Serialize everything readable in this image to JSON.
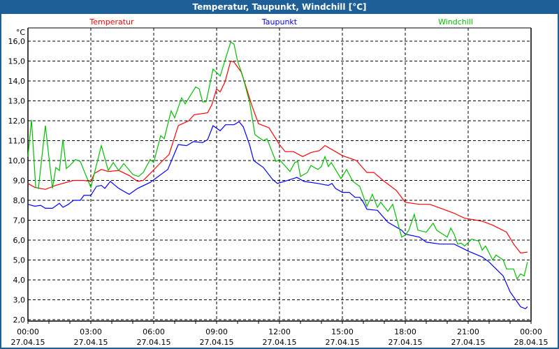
{
  "window": {
    "title": "Temperatur, Taupunkt, Windchill [°C]"
  },
  "chart_data": {
    "type": "line",
    "title": "Temperatur, Taupunkt, Windchill [°C]",
    "ylabel": "°C",
    "xlabel": "",
    "ylim": [
      2,
      16
    ],
    "xlim_hours": [
      0,
      24
    ],
    "grid": true,
    "legend_placement": "top",
    "y_ticks": [
      "2,0",
      "3,0",
      "4,0",
      "5,0",
      "6,0",
      "7,0",
      "8,0",
      "9,0",
      "10,0",
      "11,0",
      "12,0",
      "13,0",
      "14,0",
      "15,0",
      "16,0"
    ],
    "x_ticks": [
      {
        "time": "00:00",
        "date": "27.04.15"
      },
      {
        "time": "03:00",
        "date": "27.04.15"
      },
      {
        "time": "06:00",
        "date": "27.04.15"
      },
      {
        "time": "09:00",
        "date": "27.04.15"
      },
      {
        "time": "12:00",
        "date": "27.04.15"
      },
      {
        "time": "15:00",
        "date": "27.04.15"
      },
      {
        "time": "18:00",
        "date": "27.04.15"
      },
      {
        "time": "21:00",
        "date": "27.04.15"
      },
      {
        "time": "00:00",
        "date": "28.04.15"
      }
    ],
    "series": [
      {
        "name": "Temperatur",
        "color": "#ff0000",
        "points": [
          [
            0,
            8.85
          ],
          [
            0.33,
            8.65
          ],
          [
            0.83,
            8.55
          ],
          [
            1.33,
            8.75
          ],
          [
            2.17,
            9.0
          ],
          [
            2.67,
            9.0
          ],
          [
            3.0,
            8.95
          ],
          [
            3.17,
            9.35
          ],
          [
            3.5,
            9.55
          ],
          [
            3.83,
            9.45
          ],
          [
            4.33,
            9.5
          ],
          [
            4.83,
            9.25
          ],
          [
            5.23,
            8.95
          ],
          [
            5.5,
            9.0
          ],
          [
            5.83,
            9.35
          ],
          [
            6.43,
            10.0
          ],
          [
            6.73,
            10.3
          ],
          [
            7.17,
            11.75
          ],
          [
            7.67,
            12.0
          ],
          [
            7.93,
            12.3
          ],
          [
            8.57,
            12.4
          ],
          [
            8.77,
            12.8
          ],
          [
            9.0,
            13.6
          ],
          [
            9.17,
            13.45
          ],
          [
            9.4,
            13.95
          ],
          [
            9.67,
            15.0
          ],
          [
            9.83,
            14.95
          ],
          [
            10.17,
            14.45
          ],
          [
            10.33,
            13.95
          ],
          [
            10.67,
            12.8
          ],
          [
            11.0,
            11.85
          ],
          [
            11.5,
            11.65
          ],
          [
            12.0,
            10.8
          ],
          [
            12.27,
            10.45
          ],
          [
            12.67,
            10.45
          ],
          [
            13.1,
            10.2
          ],
          [
            13.5,
            10.4
          ],
          [
            13.9,
            10.5
          ],
          [
            14.17,
            10.75
          ],
          [
            15.0,
            10.25
          ],
          [
            15.67,
            10.0
          ],
          [
            16.17,
            9.4
          ],
          [
            16.5,
            9.4
          ],
          [
            17.0,
            8.95
          ],
          [
            17.57,
            8.5
          ],
          [
            18.0,
            7.9
          ],
          [
            18.67,
            7.8
          ],
          [
            19.17,
            7.8
          ],
          [
            20.33,
            7.35
          ],
          [
            20.83,
            7.1
          ],
          [
            21.67,
            6.95
          ],
          [
            22.17,
            6.75
          ],
          [
            22.83,
            6.4
          ],
          [
            23.17,
            5.8
          ],
          [
            23.5,
            5.35
          ],
          [
            23.83,
            5.4
          ]
        ]
      },
      {
        "name": "Taupunkt",
        "color": "#0000ff",
        "points": [
          [
            0,
            7.8
          ],
          [
            0.33,
            7.7
          ],
          [
            0.6,
            7.75
          ],
          [
            0.83,
            7.6
          ],
          [
            1.17,
            7.6
          ],
          [
            1.5,
            7.85
          ],
          [
            1.67,
            7.65
          ],
          [
            1.93,
            7.8
          ],
          [
            2.17,
            8.0
          ],
          [
            2.5,
            8.0
          ],
          [
            2.67,
            8.25
          ],
          [
            3.0,
            8.25
          ],
          [
            3.27,
            8.7
          ],
          [
            3.5,
            8.75
          ],
          [
            3.67,
            8.6
          ],
          [
            3.93,
            8.95
          ],
          [
            4.33,
            8.6
          ],
          [
            4.83,
            8.3
          ],
          [
            5.23,
            8.6
          ],
          [
            5.83,
            8.9
          ],
          [
            6.67,
            9.55
          ],
          [
            7.17,
            10.8
          ],
          [
            7.57,
            10.75
          ],
          [
            7.9,
            10.95
          ],
          [
            8.33,
            10.9
          ],
          [
            8.57,
            11.05
          ],
          [
            8.83,
            11.75
          ],
          [
            9.17,
            11.5
          ],
          [
            9.43,
            11.8
          ],
          [
            9.83,
            11.8
          ],
          [
            10.07,
            11.95
          ],
          [
            10.27,
            11.7
          ],
          [
            10.57,
            10.8
          ],
          [
            10.77,
            10.0
          ],
          [
            11.23,
            9.65
          ],
          [
            11.67,
            9.05
          ],
          [
            11.9,
            8.85
          ],
          [
            12.23,
            8.95
          ],
          [
            12.83,
            9.15
          ],
          [
            13.17,
            8.95
          ],
          [
            13.83,
            8.85
          ],
          [
            14.33,
            8.75
          ],
          [
            14.5,
            8.85
          ],
          [
            14.67,
            8.6
          ],
          [
            15.0,
            8.4
          ],
          [
            15.33,
            8.4
          ],
          [
            15.6,
            8.15
          ],
          [
            15.83,
            8.15
          ],
          [
            16.0,
            7.9
          ],
          [
            16.17,
            7.55
          ],
          [
            16.67,
            7.5
          ],
          [
            17.17,
            6.9
          ],
          [
            17.83,
            6.5
          ],
          [
            18.0,
            6.3
          ],
          [
            18.67,
            6.15
          ],
          [
            19.0,
            5.9
          ],
          [
            19.67,
            5.8
          ],
          [
            20.33,
            5.8
          ],
          [
            21.0,
            5.45
          ],
          [
            21.67,
            5.15
          ],
          [
            22.0,
            4.9
          ],
          [
            22.67,
            4.2
          ],
          [
            23.0,
            3.4
          ],
          [
            23.5,
            2.65
          ],
          [
            23.73,
            2.55
          ],
          [
            23.83,
            2.65
          ]
        ]
      },
      {
        "name": "Windchill",
        "color": "#00c000",
        "points": [
          [
            0,
            10.2
          ],
          [
            0.17,
            12.05
          ],
          [
            0.37,
            8.65
          ],
          [
            0.5,
            8.6
          ],
          [
            0.83,
            11.75
          ],
          [
            1.17,
            8.6
          ],
          [
            1.33,
            9.65
          ],
          [
            1.5,
            9.5
          ],
          [
            1.67,
            11.05
          ],
          [
            1.83,
            9.6
          ],
          [
            2.0,
            9.75
          ],
          [
            2.27,
            10.05
          ],
          [
            2.5,
            9.95
          ],
          [
            2.67,
            9.5
          ],
          [
            3.0,
            8.65
          ],
          [
            3.5,
            10.75
          ],
          [
            3.83,
            9.5
          ],
          [
            4.07,
            9.9
          ],
          [
            4.33,
            9.5
          ],
          [
            4.57,
            9.85
          ],
          [
            5.0,
            9.3
          ],
          [
            5.27,
            9.2
          ],
          [
            5.5,
            9.4
          ],
          [
            5.83,
            10.05
          ],
          [
            6.0,
            9.9
          ],
          [
            6.33,
            11.25
          ],
          [
            6.5,
            11.1
          ],
          [
            6.83,
            12.5
          ],
          [
            7.0,
            12.15
          ],
          [
            7.33,
            13.15
          ],
          [
            7.5,
            12.85
          ],
          [
            8.0,
            13.7
          ],
          [
            8.17,
            13.6
          ],
          [
            8.33,
            12.95
          ],
          [
            8.5,
            12.95
          ],
          [
            8.83,
            14.6
          ],
          [
            9.17,
            14.25
          ],
          [
            9.67,
            15.95
          ],
          [
            9.83,
            15.85
          ],
          [
            10.0,
            15.0
          ],
          [
            10.23,
            14.3
          ],
          [
            10.57,
            12.95
          ],
          [
            10.83,
            11.3
          ],
          [
            11.23,
            11.0
          ],
          [
            11.4,
            11.1
          ],
          [
            11.83,
            9.95
          ],
          [
            12.0,
            10.05
          ],
          [
            12.5,
            9.45
          ],
          [
            12.73,
            9.9
          ],
          [
            12.87,
            9.95
          ],
          [
            13.0,
            9.2
          ],
          [
            13.33,
            9.4
          ],
          [
            13.5,
            9.75
          ],
          [
            13.83,
            9.55
          ],
          [
            14.0,
            9.7
          ],
          [
            14.17,
            10.2
          ],
          [
            14.33,
            9.7
          ],
          [
            14.47,
            9.9
          ],
          [
            14.93,
            9.1
          ],
          [
            15.2,
            9.55
          ],
          [
            15.5,
            8.95
          ],
          [
            15.83,
            8.7
          ],
          [
            16.17,
            7.7
          ],
          [
            16.43,
            8.3
          ],
          [
            16.67,
            7.65
          ],
          [
            16.83,
            7.9
          ],
          [
            17.17,
            7.45
          ],
          [
            17.4,
            7.8
          ],
          [
            17.83,
            6.15
          ],
          [
            18.0,
            6.25
          ],
          [
            18.17,
            6.5
          ],
          [
            18.43,
            7.3
          ],
          [
            18.6,
            6.5
          ],
          [
            19.0,
            6.4
          ],
          [
            19.33,
            6.85
          ],
          [
            19.5,
            6.5
          ],
          [
            20.0,
            6.15
          ],
          [
            20.17,
            6.6
          ],
          [
            20.33,
            6.3
          ],
          [
            20.5,
            5.8
          ],
          [
            20.67,
            5.85
          ],
          [
            20.83,
            5.7
          ],
          [
            21.17,
            6.05
          ],
          [
            21.5,
            5.95
          ],
          [
            21.67,
            5.5
          ],
          [
            21.83,
            5.7
          ],
          [
            22.17,
            5.0
          ],
          [
            22.33,
            5.25
          ],
          [
            22.67,
            5.0
          ],
          [
            22.83,
            4.55
          ],
          [
            23.17,
            4.55
          ],
          [
            23.33,
            4.05
          ],
          [
            23.5,
            4.3
          ],
          [
            23.67,
            4.2
          ],
          [
            23.83,
            4.9
          ]
        ]
      }
    ]
  }
}
